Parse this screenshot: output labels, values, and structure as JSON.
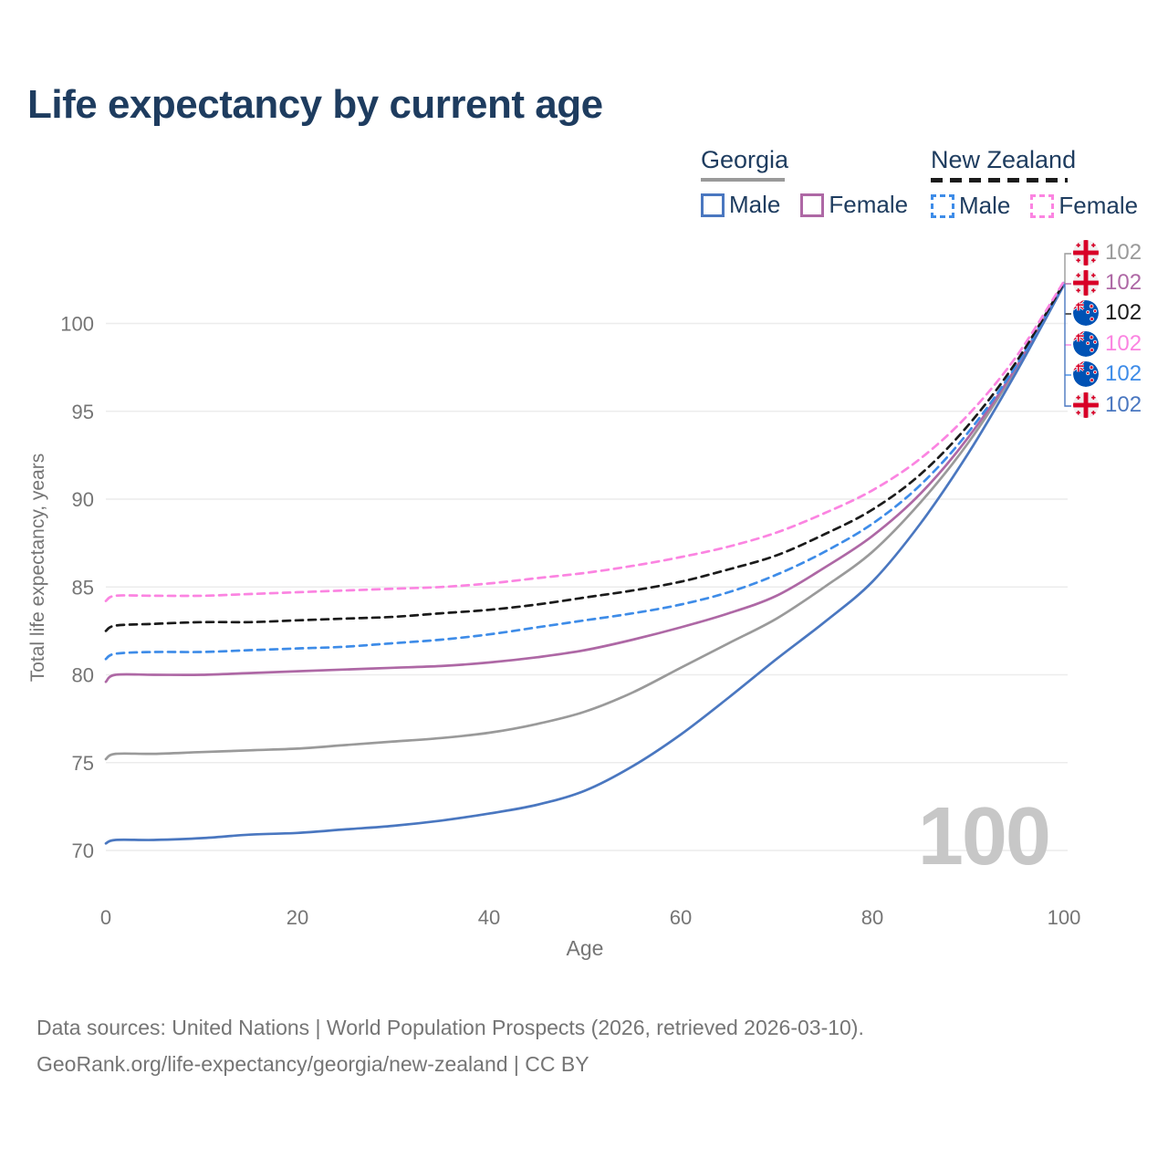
{
  "title": "Life expectancy by current age",
  "legend": {
    "georgia": {
      "label": "Georgia",
      "male": "Male",
      "female": "Female"
    },
    "new_zealand": {
      "label": "New Zealand",
      "male": "Male",
      "female": "Female"
    }
  },
  "watermark_age": "100",
  "colors": {
    "title_text": "#1e3c5f",
    "legend_text": "#1e3c5f",
    "axis_text": "#757575",
    "grid": "#ececec",
    "watermark": "#c7c7c7",
    "georgia_male": "#4a77c0",
    "georgia_female": "#ae68a5",
    "georgia_average": "#9a9a9a",
    "nz_male": "#3e8ce8",
    "nz_female": "#fb84e1",
    "nz_average": "#1b1b1b",
    "flag_red": "#d80027",
    "flag_white": "#f0f0f0",
    "flag_blue": "#0052b4"
  },
  "chart_data": {
    "type": "line",
    "title": "Life expectancy by current age",
    "xlabel": "Age",
    "ylabel": "Total life expectancy, years",
    "x_ticks": [
      0,
      20,
      40,
      60,
      80,
      100
    ],
    "y_ticks": [
      70,
      75,
      80,
      85,
      90,
      95,
      100
    ],
    "xlim": [
      0,
      100
    ],
    "ylim": [
      69,
      103
    ],
    "grid": "horizontal-only",
    "legend_position": "top-right",
    "ages": [
      0,
      1,
      5,
      10,
      15,
      20,
      25,
      30,
      35,
      40,
      45,
      50,
      55,
      60,
      65,
      70,
      75,
      80,
      85,
      90,
      95,
      100
    ],
    "series": [
      {
        "id": "georgia-average",
        "name": "Georgia Average",
        "country": "Georgia",
        "style": "solid",
        "color": "#9a9a9a",
        "values": [
          75.2,
          75.5,
          75.5,
          75.6,
          75.7,
          75.8,
          76.0,
          76.2,
          76.4,
          76.7,
          77.2,
          77.9,
          79.0,
          80.4,
          81.8,
          83.2,
          85.0,
          87.0,
          89.8,
          93.2,
          97.4,
          102.2
        ]
      },
      {
        "id": "georgia-female",
        "name": "Georgia Female",
        "country": "Georgia",
        "style": "solid",
        "color": "#ae68a5",
        "values": [
          79.6,
          80.0,
          80.0,
          80.0,
          80.1,
          80.2,
          80.3,
          80.4,
          80.5,
          80.7,
          81.0,
          81.4,
          82.0,
          82.7,
          83.5,
          84.5,
          86.1,
          87.9,
          90.3,
          93.5,
          97.5,
          102.3
        ]
      },
      {
        "id": "georgia-male",
        "name": "Georgia Male",
        "country": "Georgia",
        "style": "solid",
        "color": "#4a77c0",
        "values": [
          70.4,
          70.6,
          70.6,
          70.7,
          70.9,
          71.0,
          71.2,
          71.4,
          71.7,
          72.1,
          72.6,
          73.4,
          74.8,
          76.6,
          78.7,
          80.9,
          83.0,
          85.3,
          88.6,
          92.6,
          97.2,
          102.2
        ]
      },
      {
        "id": "nz-male",
        "name": "New Zealand Male",
        "country": "New Zealand",
        "style": "dashed",
        "color": "#3e8ce8",
        "values": [
          80.9,
          81.2,
          81.3,
          81.3,
          81.4,
          81.5,
          81.6,
          81.8,
          82.0,
          82.3,
          82.7,
          83.1,
          83.5,
          84.0,
          84.7,
          85.7,
          87.0,
          88.6,
          90.8,
          93.8,
          97.6,
          102.3
        ]
      },
      {
        "id": "nz-average",
        "name": "New Zealand Average",
        "country": "New Zealand",
        "style": "dashed",
        "color": "#1b1b1b",
        "values": [
          82.5,
          82.8,
          82.9,
          83.0,
          83.0,
          83.1,
          83.2,
          83.3,
          83.5,
          83.7,
          84.0,
          84.4,
          84.8,
          85.3,
          86.0,
          86.8,
          88.0,
          89.4,
          91.4,
          94.2,
          97.8,
          102.3
        ]
      },
      {
        "id": "nz-female",
        "name": "New Zealand Female",
        "country": "New Zealand",
        "style": "dashed",
        "color": "#fb84e1",
        "values": [
          84.2,
          84.5,
          84.5,
          84.5,
          84.6,
          84.7,
          84.8,
          84.9,
          85.0,
          85.2,
          85.5,
          85.8,
          86.2,
          86.7,
          87.3,
          88.1,
          89.2,
          90.5,
          92.3,
          94.8,
          98.1,
          102.4
        ]
      }
    ],
    "end_labels": [
      {
        "value": "102",
        "flag": "ge",
        "series": "georgia-average",
        "color": "#9a9a9a"
      },
      {
        "value": "102",
        "flag": "ge",
        "series": "georgia-female",
        "color": "#ae68a5"
      },
      {
        "value": "102",
        "flag": "nz",
        "series": "nz-average",
        "color": "#1b1b1b"
      },
      {
        "value": "102",
        "flag": "nz",
        "series": "nz-female",
        "color": "#fb84e1"
      },
      {
        "value": "102",
        "flag": "nz",
        "series": "nz-male",
        "color": "#3e8ce8"
      },
      {
        "value": "102",
        "flag": "ge",
        "series": "georgia-male",
        "color": "#4a77c0"
      }
    ]
  },
  "footer": {
    "line1": "Data sources: United Nations | World Population Prospects (2026, retrieved 2026-03-10).",
    "line2": "GeoRank.org/life-expectancy/georgia/new-zealand | CC BY"
  }
}
